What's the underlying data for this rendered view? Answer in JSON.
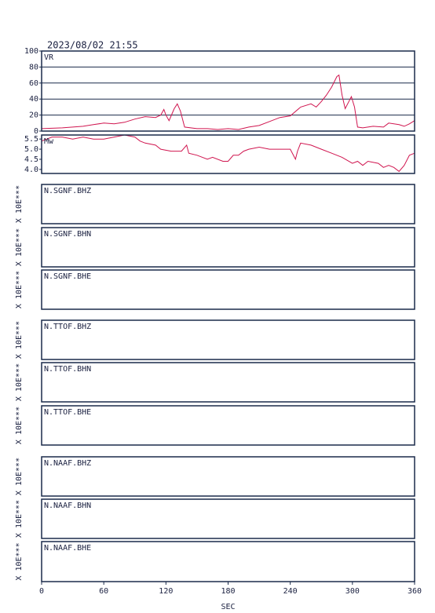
{
  "header": {
    "timestamp": "2023/08/02 21:55"
  },
  "chart_data": [
    {
      "type": "line",
      "label": "VR",
      "color": "#d0154f",
      "grid": true,
      "xlim": [
        0,
        360
      ],
      "ylim": [
        0,
        100
      ],
      "yticks": [
        0,
        20,
        40,
        60,
        80,
        100
      ],
      "x": [
        0,
        20,
        40,
        50,
        60,
        70,
        80,
        90,
        100,
        110,
        115,
        118,
        120,
        123,
        128,
        131,
        134,
        138,
        150,
        160,
        170,
        180,
        190,
        200,
        210,
        220,
        230,
        240,
        250,
        260,
        265,
        270,
        275,
        280,
        285,
        287,
        290,
        293,
        297,
        299,
        302,
        305,
        310,
        320,
        330,
        335,
        345,
        350,
        355,
        360
      ],
      "values": [
        3,
        4,
        6,
        8,
        10,
        9,
        11,
        15,
        18,
        17,
        20,
        27,
        20,
        13,
        28,
        34,
        25,
        5,
        3,
        3,
        2,
        3,
        2,
        5,
        7,
        12,
        17,
        19,
        30,
        34,
        30,
        37,
        45,
        55,
        68,
        70,
        45,
        28,
        38,
        43,
        30,
        5,
        4,
        6,
        5,
        10,
        8,
        6,
        9,
        13
      ]
    },
    {
      "type": "line",
      "label": "Mw",
      "color": "#d0154f",
      "grid": false,
      "xlim": [
        0,
        360
      ],
      "ylim": [
        3.8,
        5.7
      ],
      "yticks": [
        {
          "value": 4,
          "label": "4.0"
        },
        4.5,
        {
          "value": 5,
          "label": "5.0"
        },
        5.5
      ],
      "x": [
        0,
        10,
        20,
        30,
        40,
        50,
        60,
        70,
        80,
        90,
        95,
        100,
        110,
        115,
        125,
        135,
        140,
        142,
        150,
        160,
        165,
        175,
        180,
        185,
        190,
        195,
        200,
        210,
        220,
        230,
        240,
        245,
        247,
        250,
        260,
        270,
        280,
        290,
        300,
        305,
        310,
        315,
        325,
        330,
        335,
        340,
        345,
        350,
        355,
        360
      ],
      "values": [
        5.4,
        5.6,
        5.6,
        5.5,
        5.6,
        5.5,
        5.5,
        5.6,
        5.7,
        5.6,
        5.4,
        5.3,
        5.2,
        5.0,
        4.9,
        4.9,
        5.2,
        4.8,
        4.7,
        4.5,
        4.6,
        4.4,
        4.4,
        4.7,
        4.7,
        4.9,
        5.0,
        5.1,
        5.0,
        5.0,
        5.0,
        4.5,
        4.9,
        5.3,
        5.2,
        5.0,
        4.8,
        4.6,
        4.3,
        4.4,
        4.2,
        4.4,
        4.3,
        4.1,
        4.2,
        4.1,
        3.9,
        4.2,
        4.7,
        4.8
      ]
    }
  ],
  "panels": [
    {
      "label": "N.SGNF.BHZ",
      "scale": "X 10E***"
    },
    {
      "label": "N.SGNF.BHN",
      "scale": "X 10E***"
    },
    {
      "label": "N.SGNF.BHE",
      "scale": "X 10E***"
    },
    {
      "label": "N.TTOF.BHZ",
      "scale": "X 10E***"
    },
    {
      "label": "N.TTOF.BHN",
      "scale": "X 10E***"
    },
    {
      "label": "N.TTOF.BHE",
      "scale": "X 10E***"
    },
    {
      "label": "N.NAAF.BHZ",
      "scale": "X 10E***"
    },
    {
      "label": "N.NAAF.BHN",
      "scale": "X 10E***"
    },
    {
      "label": "N.NAAF.BHE",
      "scale": "X 10E***"
    }
  ],
  "time_axis": {
    "label": "SEC",
    "xlim": [
      0,
      360
    ],
    "xticks": [
      0,
      60,
      120,
      180,
      240,
      300,
      360
    ]
  }
}
